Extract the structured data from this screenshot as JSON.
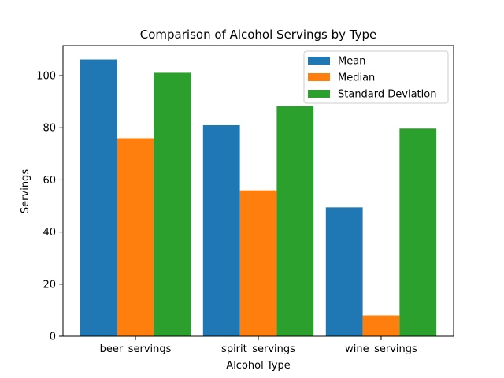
{
  "chart_data": {
    "type": "bar",
    "title": "Comparison of Alcohol Servings by Type",
    "xlabel": "Alcohol Type",
    "ylabel": "Servings",
    "categories": [
      "beer_servings",
      "spirit_servings",
      "wine_servings"
    ],
    "series": [
      {
        "name": "Mean",
        "color": "#1f77b4",
        "values": [
          106.2,
          80.99,
          49.45
        ]
      },
      {
        "name": "Median",
        "color": "#ff7f0e",
        "values": [
          76,
          56,
          8
        ]
      },
      {
        "name": "Standard Deviation",
        "color": "#2ca02c",
        "values": [
          101.1,
          88.28,
          79.7
        ]
      }
    ],
    "ylim": [
      0,
      111.5
    ],
    "yticks": [
      0,
      20,
      40,
      60,
      80,
      100
    ],
    "grid": false,
    "legend_position": "top-right"
  }
}
